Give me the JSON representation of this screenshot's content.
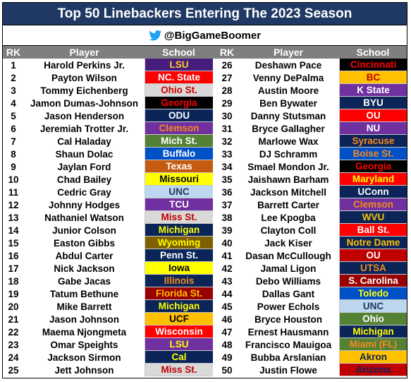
{
  "title": "Top 50 Linebackers Entering The 2023 Season",
  "handle": "@BigGameBoomer",
  "icons": {
    "twitter": "twitter-bird-icon"
  },
  "headers": {
    "rank": "RK",
    "player": "Player",
    "school": "School"
  },
  "left": [
    {
      "rk": "1",
      "player": "Harold Perkins Jr.",
      "school": "LSU",
      "bg": "#461d7c",
      "fg": "#fdd023"
    },
    {
      "rk": "2",
      "player": "Payton Wilson",
      "school": "NC. State",
      "bg": "#ff0000",
      "fg": "#ffffff"
    },
    {
      "rk": "3",
      "player": "Tommy Eichenberg",
      "school": "Ohio St.",
      "bg": "#d9d9d9",
      "fg": "#ce0000"
    },
    {
      "rk": "4",
      "player": "Jamon Dumas-Johnson",
      "school": "Georgia",
      "bg": "#000000",
      "fg": "#ff0000"
    },
    {
      "rk": "5",
      "player": "Jason Henderson",
      "school": "ODU",
      "bg": "#0b2559",
      "fg": "#ffffff"
    },
    {
      "rk": "6",
      "player": "Jeremiah Trotter Jr.",
      "school": "Clemson",
      "bg": "#7030a0",
      "fg": "#f68a1e"
    },
    {
      "rk": "7",
      "player": "Cal Haladay",
      "school": "Mich St.",
      "bg": "#548235",
      "fg": "#ffffff"
    },
    {
      "rk": "8",
      "player": "Shaun Dolac",
      "school": "Buffalo",
      "bg": "#0050c8",
      "fg": "#ffffff"
    },
    {
      "rk": "9",
      "player": "Jaylan Ford",
      "school": "Texas",
      "bg": "#c55a11",
      "fg": "#ffffff"
    },
    {
      "rk": "10",
      "player": "Chad Bailey",
      "school": "Missouri",
      "bg": "#ffff00",
      "fg": "#000000"
    },
    {
      "rk": "11",
      "player": "Cedric Gray",
      "school": "UNC",
      "bg": "#bdd7ee",
      "fg": "#1f3864"
    },
    {
      "rk": "12",
      "player": "Johnny Hodges",
      "school": "TCU",
      "bg": "#7030a0",
      "fg": "#ffffff"
    },
    {
      "rk": "13",
      "player": "Nathaniel Watson",
      "school": "Miss St.",
      "bg": "#d9d9d9",
      "fg": "#c00000"
    },
    {
      "rk": "14",
      "player": "Junior Colson",
      "school": "Michigan",
      "bg": "#0b2559",
      "fg": "#ffff00"
    },
    {
      "rk": "15",
      "player": "Easton Gibbs",
      "school": "Wyoming",
      "bg": "#7f6000",
      "fg": "#ffff00"
    },
    {
      "rk": "16",
      "player": "Abdul Carter",
      "school": "Penn St.",
      "bg": "#0b2559",
      "fg": "#ffffff"
    },
    {
      "rk": "17",
      "player": "Nick Jackson",
      "school": "Iowa",
      "bg": "#ffff00",
      "fg": "#000000"
    },
    {
      "rk": "18",
      "player": "Gabe Jacas",
      "school": "Illinois",
      "bg": "#0b2559",
      "fg": "#f68a1e"
    },
    {
      "rk": "19",
      "player": "Tatum Bethune",
      "school": "Florida St.",
      "bg": "#990000",
      "fg": "#ffc000"
    },
    {
      "rk": "20",
      "player": "Mike Barrett",
      "school": "Michigan",
      "bg": "#0b2559",
      "fg": "#ffff00"
    },
    {
      "rk": "21",
      "player": "Jason Johnson",
      "school": "UCF",
      "bg": "#ffc000",
      "fg": "#000000"
    },
    {
      "rk": "22",
      "player": "Maema Njongmeta",
      "school": "Wisconsin",
      "bg": "#ff0000",
      "fg": "#ffffff"
    },
    {
      "rk": "23",
      "player": "Omar Speights",
      "school": "LSU",
      "bg": "#7030a0",
      "fg": "#ffff00"
    },
    {
      "rk": "24",
      "player": "Jackson Sirmon",
      "school": "Cal",
      "bg": "#0b2559",
      "fg": "#ffff00"
    },
    {
      "rk": "25",
      "player": "Jett Johnson",
      "school": "Miss St.",
      "bg": "#d9d9d9",
      "fg": "#c00000"
    }
  ],
  "right": [
    {
      "rk": "26",
      "player": "Deshawn Pace",
      "school": "Cincinnati",
      "bg": "#000000",
      "fg": "#ff0000"
    },
    {
      "rk": "27",
      "player": "Venny DePalma",
      "school": "BC",
      "bg": "#ffc000",
      "fg": "#c00000"
    },
    {
      "rk": "28",
      "player": "Austin Moore",
      "school": "K State",
      "bg": "#7030a0",
      "fg": "#ffffff"
    },
    {
      "rk": "29",
      "player": "Ben Bywater",
      "school": "BYU",
      "bg": "#0b2559",
      "fg": "#ffffff"
    },
    {
      "rk": "30",
      "player": "Danny Stutsman",
      "school": "OU",
      "bg": "#ff0000",
      "fg": "#ffffff"
    },
    {
      "rk": "31",
      "player": "Bryce Gallagher",
      "school": "NU",
      "bg": "#7030a0",
      "fg": "#ffffff"
    },
    {
      "rk": "32",
      "player": "Marlowe Wax",
      "school": "Syracuse",
      "bg": "#0b2559",
      "fg": "#f68a1e"
    },
    {
      "rk": "33",
      "player": "DJ Schramm",
      "school": "Boise St.",
      "bg": "#0050c8",
      "fg": "#f68a1e"
    },
    {
      "rk": "34",
      "player": "Smael Mondon Jr.",
      "school": "Georgia",
      "bg": "#000000",
      "fg": "#ff0000"
    },
    {
      "rk": "35",
      "player": "Jaishawn Barham",
      "school": "Maryland",
      "bg": "#ff0000",
      "fg": "#ffff00"
    },
    {
      "rk": "36",
      "player": "Jackson Mitchell",
      "school": "UConn",
      "bg": "#0b2559",
      "fg": "#ffffff"
    },
    {
      "rk": "37",
      "player": "Barrett Carter",
      "school": "Clemson",
      "bg": "#7030a0",
      "fg": "#f68a1e"
    },
    {
      "rk": "38",
      "player": "Lee Kpogba",
      "school": "WVU",
      "bg": "#0b2559",
      "fg": "#ffc000"
    },
    {
      "rk": "39",
      "player": "Clayton Coll",
      "school": "Ball St.",
      "bg": "#ff0000",
      "fg": "#ffffff"
    },
    {
      "rk": "40",
      "player": "Jack Kiser",
      "school": "Notre Dame",
      "bg": "#0b2559",
      "fg": "#ffc000"
    },
    {
      "rk": "41",
      "player": "Dasan McCullough",
      "school": "OU",
      "bg": "#c00000",
      "fg": "#ffffff"
    },
    {
      "rk": "42",
      "player": "Jamal Ligon",
      "school": "UTSA",
      "bg": "#0b2559",
      "fg": "#f68a1e"
    },
    {
      "rk": "43",
      "player": "Debo Williams",
      "school": "S. Carolina",
      "bg": "#990000",
      "fg": "#ffffff"
    },
    {
      "rk": "44",
      "player": "Dallas Gant",
      "school": "Toledo",
      "bg": "#0050c8",
      "fg": "#ffff00"
    },
    {
      "rk": "45",
      "player": "Power Echols",
      "school": "UNC",
      "bg": "#bdd7ee",
      "fg": "#1f3864"
    },
    {
      "rk": "46",
      "player": "Bryce Houston",
      "school": "Ohio",
      "bg": "#548235",
      "fg": "#ffffff"
    },
    {
      "rk": "47",
      "player": "Ernest Hausmann",
      "school": "Michigan",
      "bg": "#0b2559",
      "fg": "#ffff00"
    },
    {
      "rk": "48",
      "player": "Francisco Mauigoa",
      "school": "Miami (FL)",
      "bg": "#548235",
      "fg": "#f68a1e"
    },
    {
      "rk": "49",
      "player": "Bubba Arslanian",
      "school": "Akron",
      "bg": "#ffc000",
      "fg": "#0b2559"
    },
    {
      "rk": "50",
      "player": "Justin Flowe",
      "school": "Arizona",
      "bg": "#c00000",
      "fg": "#0b2559"
    }
  ]
}
